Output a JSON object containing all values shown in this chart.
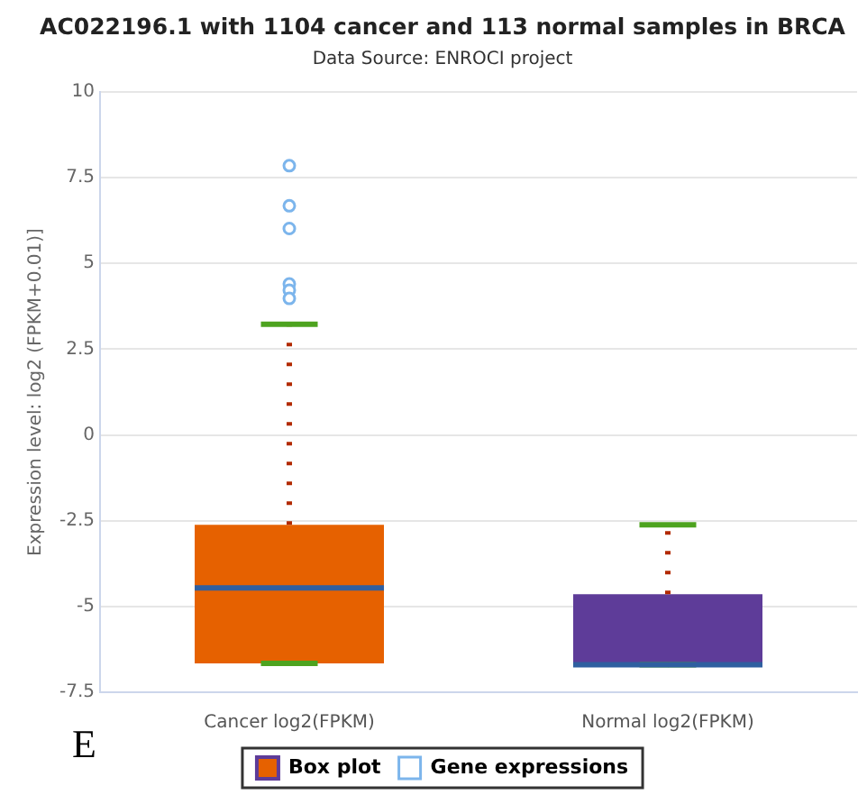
{
  "chart_data": {
    "type": "box",
    "title": "AC022196.1 with 1104 cancer and 113 normal samples in BRCA",
    "subtitle": "Data Source: ENROCI project",
    "ylabel": "Expression level: log2 (FPKM+0.01)]",
    "categories": [
      "Cancer log2(FPKM)",
      "Normal log2(FPKM)"
    ],
    "series": [
      {
        "type": "box",
        "name": "Box plot",
        "colors": [
          "#e66100",
          "#5e3c99"
        ],
        "boxes": [
          {
            "low": -6.66,
            "q1": -6.66,
            "median": -4.46,
            "q3": -2.62,
            "high": 3.23
          },
          {
            "low": -6.7,
            "q1": -6.7,
            "median": -6.7,
            "q3": -4.64,
            "high": -2.62
          }
        ]
      },
      {
        "type": "scatter",
        "name": "Gene expressions",
        "color": "#7cb5ec",
        "x": [
          "Cancer log2(FPKM)",
          "Cancer log2(FPKM)",
          "Cancer log2(FPKM)",
          "Cancer log2(FPKM)",
          "Cancer log2(FPKM)",
          "Cancer log2(FPKM)"
        ],
        "values": [
          7.85,
          6.68,
          6.02,
          4.4,
          4.22,
          3.98
        ]
      }
    ],
    "ylim": [
      -7.5,
      10
    ],
    "yticks": [
      -7.5,
      -5,
      -2.5,
      0,
      2.5,
      5,
      7.5,
      10
    ],
    "grid": "y",
    "legend": "bottom",
    "marker": "circle",
    "annotations": [
      "E"
    ]
  }
}
